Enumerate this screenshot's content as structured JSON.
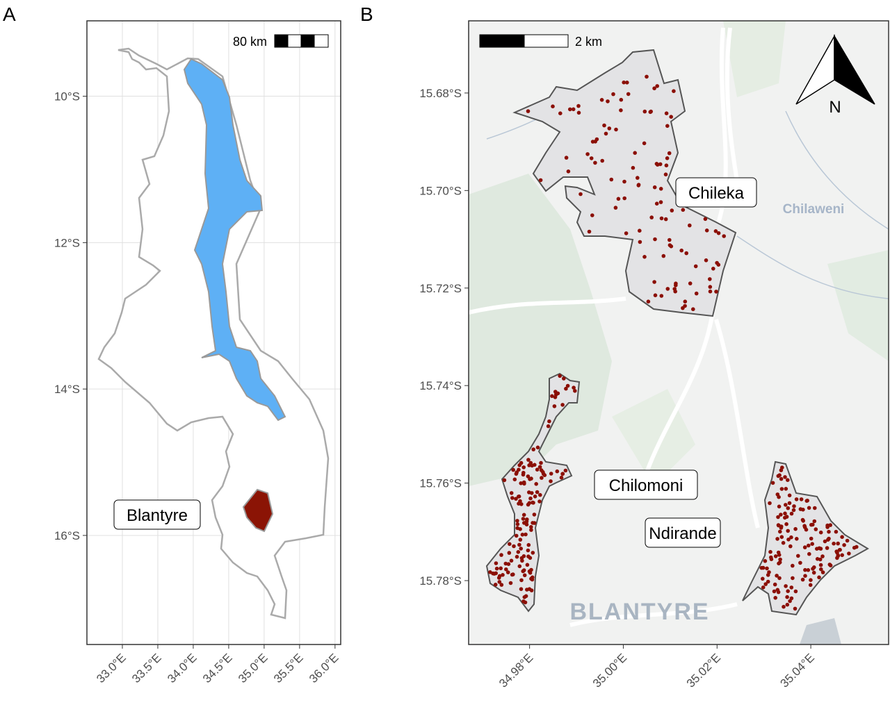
{
  "panels": [
    {
      "label": "A",
      "xlim": [
        32.5,
        36.08
      ],
      "ylim": [
        -17.49,
        -8.97
      ],
      "xticks": [
        {
          "value": 33.0,
          "label": "33.0°E"
        },
        {
          "value": 33.5,
          "label": "33.5°E"
        },
        {
          "value": 34.0,
          "label": "34.0°E"
        },
        {
          "value": 34.5,
          "label": "34.5°E"
        },
        {
          "value": 35.0,
          "label": "35.0°E"
        },
        {
          "value": 35.5,
          "label": "35.5°E"
        },
        {
          "value": 36.0,
          "label": "36.0°E"
        }
      ],
      "yticks": [
        {
          "value": -10,
          "label": "10°S"
        },
        {
          "value": -12,
          "label": "12°S"
        },
        {
          "value": -14,
          "label": "14°S"
        },
        {
          "value": -16,
          "label": "16°S"
        }
      ],
      "scale_bar": "80 km",
      "place_labels": [
        "Blantyre"
      ]
    },
    {
      "label": "B",
      "xlim": [
        34.967,
        35.0566
      ],
      "ylim": [
        -15.7931,
        -15.6652
      ],
      "xticks": [
        {
          "value": 34.98,
          "label": "34.98°E"
        },
        {
          "value": 35.0,
          "label": "35.00°E"
        },
        {
          "value": 35.02,
          "label": "35.02°E"
        },
        {
          "value": 35.04,
          "label": "35.04°E"
        }
      ],
      "yticks": [
        {
          "value": -15.68,
          "label": "15.68°S"
        },
        {
          "value": -15.7,
          "label": "15.70°S"
        },
        {
          "value": -15.72,
          "label": "15.72°S"
        },
        {
          "value": -15.74,
          "label": "15.74°S"
        },
        {
          "value": -15.76,
          "label": "15.76°S"
        },
        {
          "value": -15.78,
          "label": "15.78°S"
        }
      ],
      "scale_bar": "2 km",
      "place_labels": [
        "Chileka",
        "Chilomoni",
        "Ndirande"
      ],
      "basemap_labels": [
        "Chilaweni",
        "BLANTYRE"
      ],
      "north_arrow": "N"
    }
  ]
}
